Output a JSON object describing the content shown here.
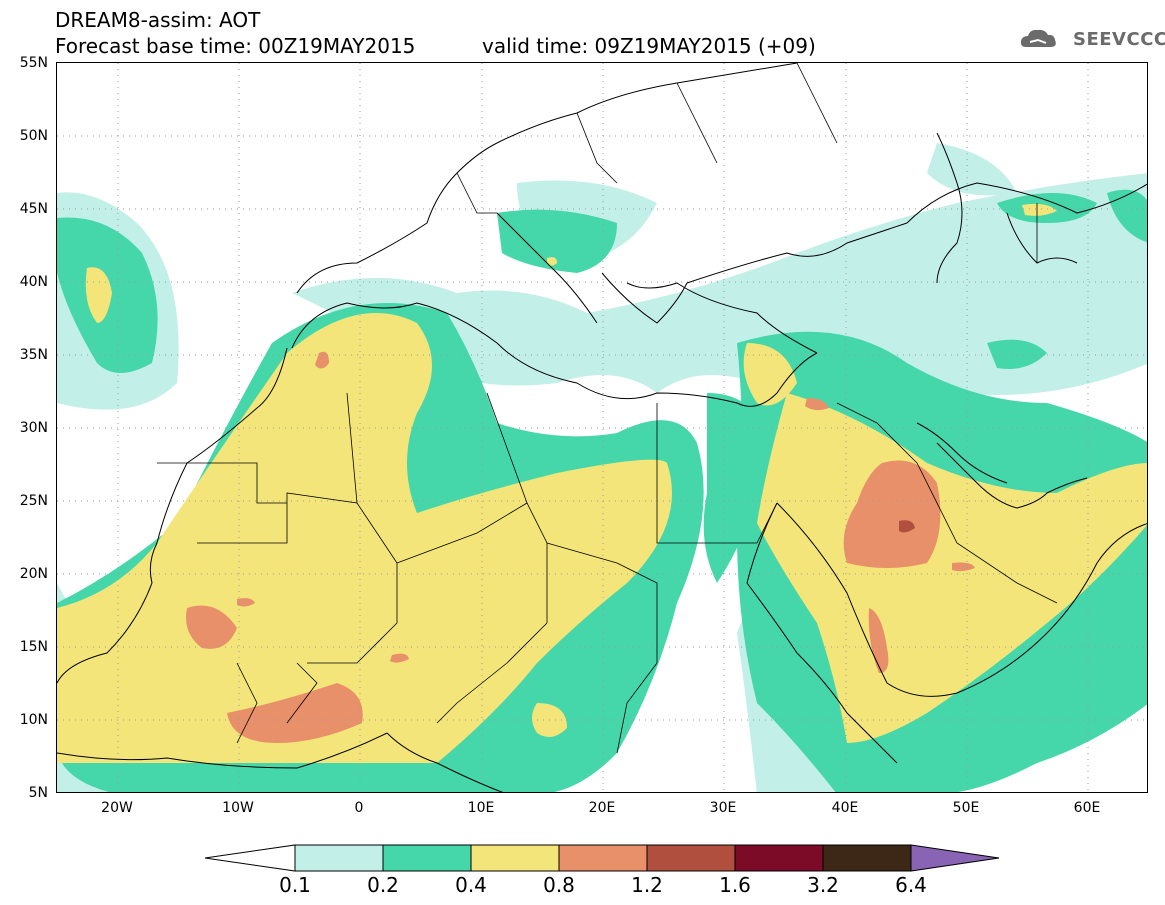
{
  "header": {
    "title_line1": "DREAM8-assim: AOT",
    "title_line2": "Forecast base time: 00Z19MAY2015",
    "valid_time": "valid time: 09Z19MAY2015 (+09)",
    "logo_text": "SEEVCCC"
  },
  "axes": {
    "lat_labels": [
      "55N",
      "50N",
      "45N",
      "40N",
      "35N",
      "30N",
      "25N",
      "20N",
      "15N",
      "10N",
      "5N"
    ],
    "lon_labels": [
      "20W",
      "10W",
      "0",
      "10E",
      "20E",
      "30E",
      "40E",
      "50E",
      "60E"
    ]
  },
  "legend": {
    "levels": [
      "0.1",
      "0.2",
      "0.4",
      "0.8",
      "1.2",
      "1.6",
      "3.2",
      "6.4"
    ],
    "colors": [
      "#ffffff",
      "#c3efe9",
      "#45d7aa",
      "#f3e57a",
      "#e7906a",
      "#b14f3e",
      "#7b0b27",
      "#3d2716",
      "#8a64b4"
    ]
  },
  "map": {
    "variable": "AOT",
    "lat_range": [
      5,
      55
    ],
    "lon_range": [
      -25,
      65
    ],
    "gridlines": "dotted"
  }
}
